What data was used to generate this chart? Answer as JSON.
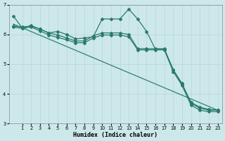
{
  "xlabel": "Humidex (Indice chaleur)",
  "xlim": [
    -0.5,
    23.5
  ],
  "ylim": [
    3,
    7
  ],
  "yticks": [
    3,
    4,
    5,
    6,
    7
  ],
  "xticks": [
    1,
    2,
    3,
    4,
    5,
    6,
    7,
    8,
    9,
    10,
    11,
    12,
    13,
    14,
    15,
    16,
    17,
    18,
    19,
    20,
    21,
    22,
    23
  ],
  "bg_color": "#cce8ea",
  "grid_color": "#b8d4d6",
  "line_color": "#2a7a6a",
  "series": [
    {
      "x": [
        0,
        1,
        2,
        3,
        4,
        5,
        6,
        7,
        8,
        9,
        10,
        11,
        12,
        13,
        14,
        15,
        16,
        17,
        18,
        19,
        20,
        21,
        22,
        23
      ],
      "y": [
        6.62,
        6.22,
        6.3,
        6.18,
        6.05,
        6.1,
        6.0,
        5.85,
        5.88,
        5.92,
        6.52,
        6.52,
        6.52,
        6.85,
        6.52,
        6.1,
        5.5,
        5.5,
        4.82,
        4.32,
        3.72,
        3.55,
        3.48,
        3.45
      ],
      "marker": "D",
      "markersize": 2.0,
      "linewidth": 0.9
    },
    {
      "x": [
        0,
        1,
        2,
        3,
        4,
        5,
        6,
        7,
        8,
        9,
        10,
        11,
        12,
        13,
        14,
        15,
        16,
        17,
        18,
        19,
        20,
        21,
        22,
        23
      ],
      "y": [
        6.28,
        6.25,
        6.28,
        6.18,
        6.05,
        5.98,
        5.88,
        5.78,
        5.78,
        5.95,
        6.05,
        6.05,
        6.05,
        6.0,
        5.52,
        5.52,
        5.52,
        5.52,
        4.8,
        4.35,
        3.68,
        3.52,
        3.45,
        3.45
      ],
      "marker": "D",
      "markersize": 2.0,
      "linewidth": 0.9
    },
    {
      "x": [
        0,
        1,
        2,
        3,
        4,
        5,
        6,
        7,
        8,
        9,
        10,
        11,
        12,
        13,
        14,
        15,
        16,
        17,
        18,
        19,
        20,
        21,
        22,
        23
      ],
      "y": [
        6.25,
        6.2,
        6.25,
        6.12,
        5.98,
        5.9,
        5.82,
        5.72,
        5.72,
        5.88,
        5.98,
        5.98,
        5.98,
        5.92,
        5.48,
        5.48,
        5.48,
        5.48,
        4.75,
        4.28,
        3.62,
        3.45,
        3.4,
        3.4
      ],
      "marker": "D",
      "markersize": 2.0,
      "linewidth": 0.9
    },
    {
      "x": [
        0,
        23
      ],
      "y": [
        6.35,
        3.45
      ],
      "marker": null,
      "markersize": 0,
      "linewidth": 0.85
    }
  ]
}
